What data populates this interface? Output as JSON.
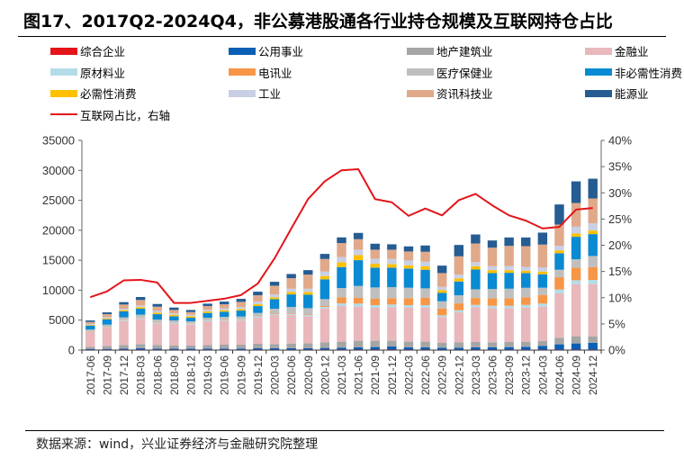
{
  "title": "图17、2017Q2-2024Q4，非公募港股通各行业持仓规模及互联网持仓占比",
  "footer": "数据来源：wind，兴业证券经济与金融研究院整理",
  "chart_data": {
    "type": "bar",
    "subtype": "stacked-bar-with-line",
    "title": "2017Q2-2024Q4，非公募港股通各行业持仓规模及互联网持仓占比",
    "xlabel": "",
    "ylabel": "",
    "y2label": "",
    "ylim": [
      0,
      35000
    ],
    "y2lim": [
      0,
      0.4
    ],
    "yticks": [
      "0",
      "5000",
      "10000",
      "15000",
      "20000",
      "25000",
      "30000",
      "35000"
    ],
    "y2ticks": [
      "0%",
      "5%",
      "10%",
      "15%",
      "20%",
      "25%",
      "30%",
      "35%",
      "40%"
    ],
    "grid": false,
    "legend_position": "top",
    "categories": [
      "2017-06",
      "2017-09",
      "2017-12",
      "2018-03",
      "2018-06",
      "2018-09",
      "2018-12",
      "2019-03",
      "2019-06",
      "2019-09",
      "2019-12",
      "2020-03",
      "2020-06",
      "2020-09",
      "2020-12",
      "2021-03",
      "2021-06",
      "2021-09",
      "2021-12",
      "2022-03",
      "2022-06",
      "2022-09",
      "2022-12",
      "2023-03",
      "2023-06",
      "2023-09",
      "2023-12",
      "2024-03",
      "2024-06",
      "2024-09",
      "2024-12"
    ],
    "series": [
      {
        "name": "综合企业",
        "color": "#e3151a",
        "type": "bar",
        "values": [
          50,
          50,
          60,
          60,
          50,
          50,
          50,
          50,
          50,
          50,
          50,
          50,
          50,
          50,
          60,
          60,
          60,
          60,
          60,
          60,
          60,
          50,
          50,
          50,
          50,
          50,
          50,
          60,
          60,
          60,
          60
        ]
      },
      {
        "name": "公用事业",
        "color": "#0a5fb4",
        "type": "bar",
        "values": [
          150,
          150,
          200,
          250,
          200,
          200,
          200,
          200,
          200,
          200,
          250,
          250,
          250,
          250,
          300,
          350,
          400,
          450,
          550,
          400,
          400,
          350,
          350,
          400,
          400,
          450,
          500,
          650,
          900,
          1050,
          1150
        ]
      },
      {
        "name": "地产建筑业",
        "color": "#a5a5a5",
        "type": "bar",
        "values": [
          350,
          500,
          600,
          700,
          600,
          550,
          500,
          600,
          650,
          650,
          750,
          700,
          800,
          850,
          950,
          1000,
          1100,
          1050,
          950,
          950,
          950,
          800,
          900,
          900,
          850,
          850,
          800,
          800,
          1100,
          1200,
          1100
        ]
      },
      {
        "name": "金融业",
        "color": "#e8b8bc",
        "type": "bar",
        "values": [
          2450,
          3050,
          4000,
          4200,
          3600,
          3550,
          3500,
          3950,
          4000,
          4050,
          4350,
          4850,
          4750,
          4500,
          5650,
          5950,
          5700,
          5500,
          5600,
          5700,
          5700,
          4300,
          5000,
          5800,
          5700,
          5650,
          5750,
          5750,
          7400,
          8700,
          8700
        ]
      },
      {
        "name": "原材料业",
        "color": "#b4dce8",
        "type": "bar",
        "values": [
          100,
          100,
          150,
          150,
          150,
          150,
          150,
          150,
          150,
          150,
          150,
          150,
          200,
          200,
          250,
          450,
          500,
          450,
          450,
          400,
          400,
          300,
          350,
          400,
          400,
          400,
          450,
          500,
          650,
          650,
          700
        ]
      },
      {
        "name": "电讯业",
        "color": "#f79646",
        "type": "bar",
        "values": [
          50,
          50,
          50,
          50,
          50,
          50,
          50,
          50,
          50,
          50,
          50,
          100,
          100,
          100,
          150,
          1000,
          950,
          1050,
          1050,
          1150,
          1250,
          1150,
          1150,
          1150,
          1250,
          1250,
          1250,
          1450,
          2050,
          2100,
          2150
        ]
      },
      {
        "name": "医疗保健业",
        "color": "#bfbfbf",
        "type": "bar",
        "values": [
          300,
          350,
          400,
          500,
          450,
          400,
          350,
          400,
          450,
          450,
          600,
          800,
          1050,
          1050,
          1150,
          1550,
          2000,
          1900,
          1850,
          1750,
          1550,
          1200,
          1350,
          1450,
          1550,
          1600,
          1600,
          1200,
          1250,
          1400,
          1850
        ]
      },
      {
        "name": "非必需性消费",
        "color": "#0a8ad2",
        "type": "bar",
        "values": [
          650,
          900,
          1000,
          1000,
          900,
          700,
          600,
          800,
          850,
          1000,
          1150,
          1600,
          2100,
          2250,
          3300,
          3500,
          4300,
          3300,
          3250,
          3200,
          3100,
          1400,
          2300,
          3300,
          2650,
          2650,
          2450,
          2250,
          2750,
          3750,
          3650
        ]
      },
      {
        "name": "必需性消费",
        "color": "#ffc000",
        "type": "bar",
        "values": [
          100,
          150,
          200,
          250,
          250,
          250,
          250,
          250,
          250,
          250,
          300,
          300,
          400,
          450,
          550,
          800,
          850,
          650,
          600,
          550,
          550,
          450,
          500,
          550,
          500,
          450,
          400,
          450,
          500,
          550,
          600
        ]
      },
      {
        "name": "工业",
        "color": "#c9cfe4",
        "type": "bar",
        "values": [
          150,
          200,
          250,
          300,
          300,
          250,
          250,
          300,
          300,
          350,
          450,
          500,
          550,
          550,
          750,
          850,
          900,
          850,
          850,
          800,
          800,
          550,
          650,
          700,
          650,
          700,
          650,
          700,
          750,
          1150,
          1200
        ]
      },
      {
        "name": "资讯科技业",
        "color": "#e0a98a",
        "type": "bar",
        "values": [
          350,
          500,
          700,
          900,
          700,
          550,
          450,
          600,
          700,
          850,
          1050,
          1450,
          1750,
          2350,
          2100,
          2350,
          1750,
          1500,
          1550,
          1500,
          1650,
          2300,
          3050,
          3100,
          3100,
          3350,
          3450,
          3800,
          3550,
          3950,
          4150
        ]
      },
      {
        "name": "能源业",
        "color": "#255c92",
        "type": "bar",
        "values": [
          250,
          300,
          400,
          500,
          450,
          400,
          350,
          400,
          450,
          500,
          600,
          650,
          700,
          750,
          850,
          950,
          1050,
          1000,
          900,
          850,
          1050,
          1250,
          1900,
          1500,
          1200,
          1400,
          1450,
          2000,
          3350,
          3600,
          3300
        ]
      },
      {
        "name": "互联网占比，右轴",
        "color": "#e3151a",
        "type": "line",
        "axis": "right",
        "values": [
          0.101,
          0.112,
          0.133,
          0.134,
          0.129,
          0.09,
          0.09,
          0.094,
          0.098,
          0.105,
          0.127,
          0.175,
          0.232,
          0.288,
          0.322,
          0.343,
          0.345,
          0.288,
          0.282,
          0.256,
          0.27,
          0.257,
          0.286,
          0.298,
          0.276,
          0.257,
          0.247,
          0.232,
          0.235,
          0.268,
          0.271
        ]
      }
    ]
  }
}
